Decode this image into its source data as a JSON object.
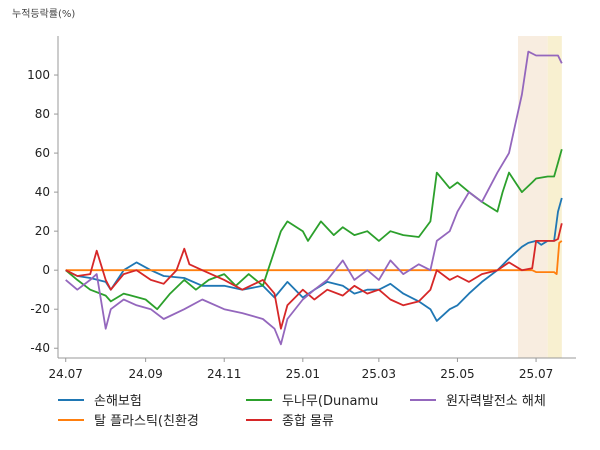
{
  "chart_data": {
    "type": "line",
    "ylabel": "누적등락률(%)",
    "ylim": [
      -45,
      120
    ],
    "yticks": [
      -40,
      -20,
      0,
      20,
      40,
      60,
      80,
      100
    ],
    "xlim": [
      "2024-06-25",
      "2025-08-01"
    ],
    "xticks": [
      {
        "date": "2024-07-01",
        "label": "24.07"
      },
      {
        "date": "2024-09-01",
        "label": "24.09"
      },
      {
        "date": "2024-11-01",
        "label": "24.11"
      },
      {
        "date": "2025-01-01",
        "label": "25.01"
      },
      {
        "date": "2025-03-01",
        "label": "25.03"
      },
      {
        "date": "2025-05-01",
        "label": "25.05"
      },
      {
        "date": "2025-07-01",
        "label": "25.07"
      }
    ],
    "highlights": [
      {
        "from": "2025-06-17",
        "to": "2025-07-10",
        "color": "#f8ede0"
      },
      {
        "from": "2025-07-10",
        "to": "2025-07-21",
        "color": "#f8f0d0"
      }
    ],
    "legend_position": "bottom",
    "series": [
      {
        "name": "손해보험",
        "color": "#1f77b4",
        "points": [
          [
            "2024-07-01",
            0
          ],
          [
            "2024-07-10",
            -3
          ],
          [
            "2024-07-20",
            -4
          ],
          [
            "2024-08-01",
            -6
          ],
          [
            "2024-08-05",
            -10
          ],
          [
            "2024-08-15",
            0
          ],
          [
            "2024-08-25",
            4
          ],
          [
            "2024-09-05",
            0
          ],
          [
            "2024-09-15",
            -3
          ],
          [
            "2024-10-01",
            -4
          ],
          [
            "2024-10-15",
            -8
          ],
          [
            "2024-11-01",
            -8
          ],
          [
            "2024-11-15",
            -10
          ],
          [
            "2024-12-01",
            -8
          ],
          [
            "2024-12-10",
            -14
          ],
          [
            "2024-12-20",
            -6
          ],
          [
            "2025-01-01",
            -14
          ],
          [
            "2025-01-10",
            -10
          ],
          [
            "2025-01-20",
            -6
          ],
          [
            "2025-02-01",
            -8
          ],
          [
            "2025-02-10",
            -12
          ],
          [
            "2025-02-20",
            -10
          ],
          [
            "2025-03-01",
            -10
          ],
          [
            "2025-03-10",
            -7
          ],
          [
            "2025-03-20",
            -12
          ],
          [
            "2025-04-01",
            -16
          ],
          [
            "2025-04-10",
            -20
          ],
          [
            "2025-04-15",
            -26
          ],
          [
            "2025-04-25",
            -20
          ],
          [
            "2025-05-01",
            -18
          ],
          [
            "2025-05-10",
            -12
          ],
          [
            "2025-05-20",
            -6
          ],
          [
            "2025-06-01",
            0
          ],
          [
            "2025-06-10",
            6
          ],
          [
            "2025-06-20",
            12
          ],
          [
            "2025-06-25",
            14
          ],
          [
            "2025-07-01",
            15
          ],
          [
            "2025-07-05",
            13
          ],
          [
            "2025-07-10",
            15
          ],
          [
            "2025-07-15",
            15
          ],
          [
            "2025-07-18",
            30
          ],
          [
            "2025-07-21",
            37
          ]
        ]
      },
      {
        "name": "탈 플라스틱(친환경",
        "color": "#ff7f0e",
        "points": [
          [
            "2024-07-01",
            0
          ],
          [
            "2025-06-28",
            0
          ],
          [
            "2025-07-01",
            -1
          ],
          [
            "2025-07-15",
            -1
          ],
          [
            "2025-07-17",
            -2
          ],
          [
            "2025-07-19",
            14
          ],
          [
            "2025-07-21",
            15
          ]
        ]
      },
      {
        "name": "두나무(Dunamu",
        "color": "#2ca02c",
        "points": [
          [
            "2024-07-01",
            0
          ],
          [
            "2024-07-10",
            -5
          ],
          [
            "2024-07-20",
            -10
          ],
          [
            "2024-08-01",
            -13
          ],
          [
            "2024-08-05",
            -16
          ],
          [
            "2024-08-15",
            -12
          ],
          [
            "2024-09-01",
            -15
          ],
          [
            "2024-09-10",
            -20
          ],
          [
            "2024-09-20",
            -12
          ],
          [
            "2024-10-01",
            -5
          ],
          [
            "2024-10-10",
            -10
          ],
          [
            "2024-10-20",
            -5
          ],
          [
            "2024-11-01",
            -2
          ],
          [
            "2024-11-10",
            -8
          ],
          [
            "2024-11-20",
            -2
          ],
          [
            "2024-12-01",
            -8
          ],
          [
            "2024-12-05",
            0
          ],
          [
            "2024-12-10",
            10
          ],
          [
            "2024-12-15",
            20
          ],
          [
            "2024-12-20",
            25
          ],
          [
            "2025-01-01",
            20
          ],
          [
            "2025-01-05",
            15
          ],
          [
            "2025-01-15",
            25
          ],
          [
            "2025-01-25",
            18
          ],
          [
            "2025-02-01",
            22
          ],
          [
            "2025-02-10",
            18
          ],
          [
            "2025-02-20",
            20
          ],
          [
            "2025-03-01",
            15
          ],
          [
            "2025-03-10",
            20
          ],
          [
            "2025-03-20",
            18
          ],
          [
            "2025-04-01",
            17
          ],
          [
            "2025-04-10",
            25
          ],
          [
            "2025-04-15",
            50
          ],
          [
            "2025-04-25",
            42
          ],
          [
            "2025-05-01",
            45
          ],
          [
            "2025-05-10",
            40
          ],
          [
            "2025-05-20",
            35
          ],
          [
            "2025-06-01",
            30
          ],
          [
            "2025-06-05",
            40
          ],
          [
            "2025-06-10",
            50
          ],
          [
            "2025-06-15",
            45
          ],
          [
            "2025-06-20",
            40
          ],
          [
            "2025-06-28",
            45
          ],
          [
            "2025-07-01",
            47
          ],
          [
            "2025-07-10",
            48
          ],
          [
            "2025-07-15",
            48
          ],
          [
            "2025-07-18",
            55
          ],
          [
            "2025-07-21",
            62
          ]
        ]
      },
      {
        "name": "종합 물류",
        "color": "#d62728",
        "points": [
          [
            "2024-07-01",
            0
          ],
          [
            "2024-07-10",
            -3
          ],
          [
            "2024-07-20",
            -2
          ],
          [
            "2024-07-25",
            10
          ],
          [
            "2024-08-01",
            -5
          ],
          [
            "2024-08-05",
            -10
          ],
          [
            "2024-08-15",
            -2
          ],
          [
            "2024-08-25",
            0
          ],
          [
            "2024-09-05",
            -5
          ],
          [
            "2024-09-15",
            -7
          ],
          [
            "2024-09-25",
            0
          ],
          [
            "2024-10-01",
            11
          ],
          [
            "2024-10-05",
            3
          ],
          [
            "2024-10-15",
            0
          ],
          [
            "2024-11-01",
            -5
          ],
          [
            "2024-11-15",
            -10
          ],
          [
            "2024-12-01",
            -5
          ],
          [
            "2024-12-10",
            -12
          ],
          [
            "2024-12-15",
            -30
          ],
          [
            "2024-12-20",
            -18
          ],
          [
            "2025-01-01",
            -10
          ],
          [
            "2025-01-10",
            -15
          ],
          [
            "2025-01-20",
            -10
          ],
          [
            "2025-02-01",
            -13
          ],
          [
            "2025-02-10",
            -8
          ],
          [
            "2025-02-20",
            -12
          ],
          [
            "2025-03-01",
            -10
          ],
          [
            "2025-03-10",
            -15
          ],
          [
            "2025-03-20",
            -18
          ],
          [
            "2025-04-01",
            -16
          ],
          [
            "2025-04-10",
            -10
          ],
          [
            "2025-04-15",
            0
          ],
          [
            "2025-04-25",
            -5
          ],
          [
            "2025-05-01",
            -3
          ],
          [
            "2025-05-10",
            -6
          ],
          [
            "2025-05-20",
            -2
          ],
          [
            "2025-06-01",
            0
          ],
          [
            "2025-06-10",
            4
          ],
          [
            "2025-06-20",
            0
          ],
          [
            "2025-06-28",
            1
          ],
          [
            "2025-07-01",
            15
          ],
          [
            "2025-07-10",
            15
          ],
          [
            "2025-07-15",
            15
          ],
          [
            "2025-07-18",
            16
          ],
          [
            "2025-07-21",
            24
          ]
        ]
      },
      {
        "name": "원자력발전소 해체",
        "color": "#9467bd",
        "points": [
          [
            "2024-07-01",
            -5
          ],
          [
            "2024-07-10",
            -10
          ],
          [
            "2024-07-20",
            -5
          ],
          [
            "2024-07-25",
            -2
          ],
          [
            "2024-08-01",
            -30
          ],
          [
            "2024-08-05",
            -20
          ],
          [
            "2024-08-15",
            -15
          ],
          [
            "2024-08-25",
            -18
          ],
          [
            "2024-09-05",
            -20
          ],
          [
            "2024-09-15",
            -25
          ],
          [
            "2024-10-01",
            -20
          ],
          [
            "2024-10-15",
            -15
          ],
          [
            "2024-11-01",
            -20
          ],
          [
            "2024-11-15",
            -22
          ],
          [
            "2024-12-01",
            -25
          ],
          [
            "2024-12-10",
            -30
          ],
          [
            "2024-12-15",
            -38
          ],
          [
            "2024-12-20",
            -25
          ],
          [
            "2025-01-01",
            -15
          ],
          [
            "2025-01-10",
            -10
          ],
          [
            "2025-01-20",
            -5
          ],
          [
            "2025-02-01",
            5
          ],
          [
            "2025-02-10",
            -5
          ],
          [
            "2025-02-20",
            0
          ],
          [
            "2025-03-01",
            -5
          ],
          [
            "2025-03-10",
            5
          ],
          [
            "2025-03-20",
            -2
          ],
          [
            "2025-04-01",
            3
          ],
          [
            "2025-04-10",
            0
          ],
          [
            "2025-04-15",
            15
          ],
          [
            "2025-04-25",
            20
          ],
          [
            "2025-05-01",
            30
          ],
          [
            "2025-05-10",
            40
          ],
          [
            "2025-05-20",
            35
          ],
          [
            "2025-06-01",
            50
          ],
          [
            "2025-06-10",
            60
          ],
          [
            "2025-06-15",
            75
          ],
          [
            "2025-06-20",
            90
          ],
          [
            "2025-06-25",
            112
          ],
          [
            "2025-07-01",
            110
          ],
          [
            "2025-07-10",
            110
          ],
          [
            "2025-07-15",
            110
          ],
          [
            "2025-07-18",
            110
          ],
          [
            "2025-07-21",
            106
          ]
        ]
      }
    ]
  }
}
